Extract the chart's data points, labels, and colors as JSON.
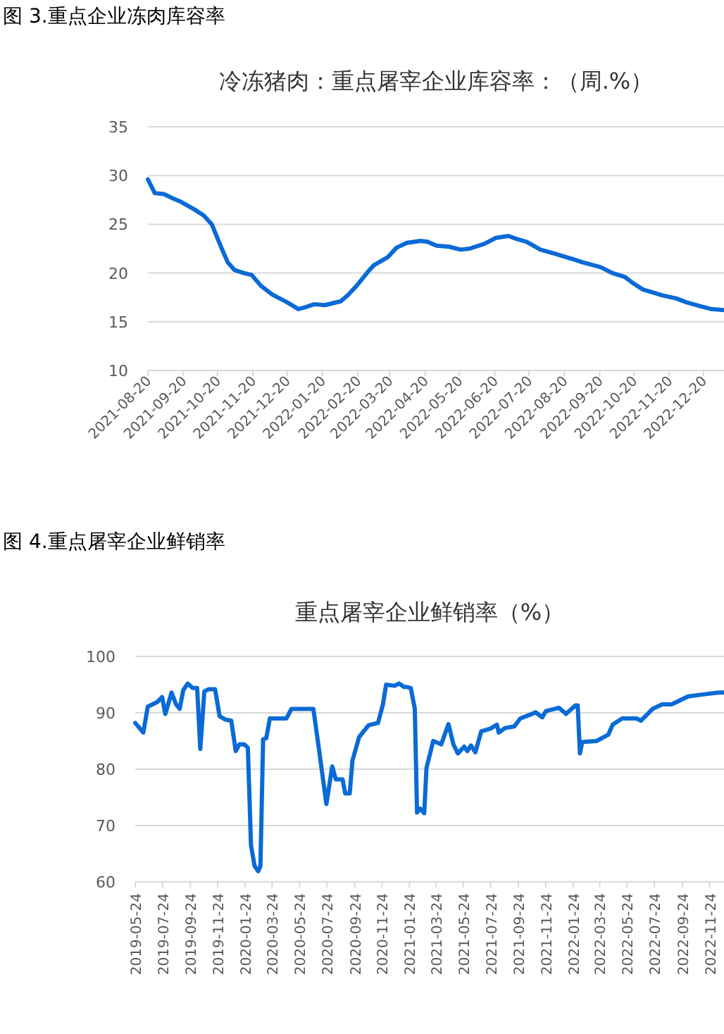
{
  "chart_data": [
    {
      "type": "line",
      "title": "图 3.重点企业冻肉库容率",
      "subtitle": "冷冻猪肉：重点屠宰企业库容率：（周.%）",
      "color": "#0a6ad6",
      "grid": "y",
      "x": [
        "2021-08-20",
        "2021-08-26",
        "2021-09-03",
        "2021-09-10",
        "2021-09-18",
        "2021-09-30",
        "2021-10-08",
        "2021-10-15",
        "2021-10-23",
        "2021-10-29",
        "2021-11-04",
        "2021-11-12",
        "2021-11-19",
        "2021-11-27",
        "2021-12-07",
        "2021-12-20",
        "2021-12-30",
        "2022-01-05",
        "2022-01-13",
        "2022-01-22",
        "2022-02-05",
        "2022-02-11",
        "2022-02-19",
        "2022-02-28",
        "2022-03-06",
        "2022-03-18",
        "2022-03-26",
        "2022-04-04",
        "2022-04-16",
        "2022-04-22",
        "2022-04-30",
        "2022-05-11",
        "2022-05-21",
        "2022-05-29",
        "2022-06-11",
        "2022-06-21",
        "2022-07-02",
        "2022-07-09",
        "2022-07-18",
        "2022-07-30",
        "2022-08-11",
        "2022-08-28",
        "2022-09-05",
        "2022-09-21",
        "2022-10-01",
        "2022-10-12",
        "2022-10-20",
        "2022-10-28",
        "2022-11-06",
        "2022-11-14",
        "2022-11-26",
        "2022-12-05",
        "2022-12-17",
        "2022-12-27",
        "2023-01-07"
      ],
      "values": [
        29.6,
        28.2,
        28.1,
        27.7,
        27.3,
        26.5,
        25.9,
        25.0,
        22.7,
        21.1,
        20.3,
        20.0,
        19.8,
        18.7,
        17.8,
        17.0,
        16.3,
        16.5,
        16.8,
        16.7,
        17.1,
        17.7,
        18.7,
        20.0,
        20.8,
        21.6,
        22.6,
        23.1,
        23.3,
        23.2,
        22.8,
        22.7,
        22.4,
        22.5,
        23.0,
        23.6,
        23.8,
        23.5,
        23.2,
        22.4,
        22.0,
        21.4,
        21.1,
        20.6,
        20.0,
        19.6,
        18.9,
        18.3,
        18.0,
        17.7,
        17.4,
        17.0,
        16.6,
        16.3,
        16.2
      ],
      "xlim": [
        "2021-08-20",
        "2023-01-07"
      ],
      "xticks": [
        "2021-08-20",
        "2021-09-20",
        "2021-10-20",
        "2021-11-20",
        "2021-12-20",
        "2022-01-20",
        "2022-02-20",
        "2022-03-20",
        "2022-04-20",
        "2022-05-20",
        "2022-06-20",
        "2022-07-20",
        "2022-08-20",
        "2022-09-20",
        "2022-10-20",
        "2022-11-20",
        "2022-12-20"
      ],
      "ylim": [
        10,
        35
      ],
      "yticks": [
        10,
        15,
        20,
        25,
        30,
        35
      ]
    },
    {
      "type": "line",
      "title": "图 4.重点屠宰企业鲜销率",
      "subtitle": "重点屠宰企业鲜销率（%）",
      "color": "#0a6ad6",
      "grid": "y",
      "x": [
        "2019-05-24",
        "2019-06-11",
        "2019-06-21",
        "2019-07-12",
        "2019-07-23",
        "2019-07-30",
        "2019-08-13",
        "2019-08-23",
        "2019-08-31",
        "2019-09-08",
        "2019-09-18",
        "2019-09-29",
        "2019-10-09",
        "2019-10-16",
        "2019-10-25",
        "2019-11-04",
        "2019-11-18",
        "2019-11-28",
        "2019-12-11",
        "2019-12-24",
        "2020-01-03",
        "2020-01-11",
        "2020-01-22",
        "2020-01-30",
        "2020-02-06",
        "2020-02-14",
        "2020-02-22",
        "2020-02-27",
        "2020-03-04",
        "2020-03-11",
        "2020-03-19",
        "2020-04-25",
        "2020-05-06",
        "2020-06-24",
        "2020-07-07",
        "2020-07-23",
        "2020-08-05",
        "2020-08-13",
        "2020-08-28",
        "2020-09-03",
        "2020-09-13",
        "2020-09-19",
        "2020-10-04",
        "2020-10-25",
        "2020-11-15",
        "2020-11-26",
        "2020-12-03",
        "2020-12-22",
        "2021-01-01",
        "2021-01-12",
        "2021-01-17",
        "2021-01-27",
        "2021-02-05",
        "2021-02-10",
        "2021-02-17",
        "2021-02-26",
        "2021-03-03",
        "2021-03-18",
        "2021-04-05",
        "2021-04-21",
        "2021-05-02",
        "2021-05-12",
        "2021-05-26",
        "2021-06-02",
        "2021-06-10",
        "2021-06-20",
        "2021-07-03",
        "2021-07-24",
        "2021-08-07",
        "2021-08-11",
        "2021-08-25",
        "2021-09-15",
        "2021-09-28",
        "2021-10-21",
        "2021-11-01",
        "2021-11-16",
        "2021-11-24",
        "2021-12-23",
        "2022-01-08",
        "2022-01-29",
        "2022-02-03",
        "2022-02-08",
        "2022-02-13",
        "2022-03-17",
        "2022-04-12",
        "2022-04-22",
        "2022-05-13",
        "2022-06-14",
        "2022-06-24",
        "2022-07-20",
        "2022-08-10",
        "2022-08-31",
        "2022-09-11",
        "2022-10-07",
        "2022-11-13",
        "2022-12-14",
        "2022-12-26"
      ],
      "values": [
        88.2,
        86.5,
        91.1,
        91.9,
        92.8,
        89.8,
        93.6,
        91.5,
        90.7,
        94.0,
        95.2,
        94.4,
        94.4,
        83.6,
        93.8,
        94.2,
        94.2,
        89.4,
        88.8,
        88.6,
        83.2,
        84.4,
        84.4,
        83.8,
        66.5,
        62.8,
        61.9,
        62.8,
        85.3,
        85.5,
        89.0,
        89.0,
        90.7,
        90.7,
        83.2,
        73.8,
        80.5,
        78.2,
        78.2,
        75.7,
        75.7,
        81.5,
        85.7,
        87.8,
        88.2,
        91.5,
        95.0,
        94.8,
        95.2,
        94.6,
        94.6,
        94.4,
        90.7,
        72.3,
        73.0,
        72.2,
        80.2,
        85.0,
        84.4,
        88.0,
        84.4,
        82.8,
        84.0,
        83.2,
        84.2,
        83.0,
        86.7,
        87.2,
        87.9,
        86.5,
        87.3,
        87.6,
        89.0,
        89.7,
        90.1,
        89.2,
        90.3,
        90.9,
        89.8,
        91.3,
        91.3,
        82.8,
        84.8,
        85.0,
        86.1,
        87.9,
        89.0,
        89.0,
        88.6,
        90.7,
        91.5,
        91.5,
        91.9,
        92.9,
        93.3,
        93.6,
        93.6
      ],
      "xlim": [
        "2019-05-24",
        "2022-12-26"
      ],
      "xticks": [
        "2019-05-24",
        "2019-07-24",
        "2019-09-24",
        "2019-11-24",
        "2020-01-24",
        "2020-03-24",
        "2020-05-24",
        "2020-07-24",
        "2020-09-24",
        "2020-11-24",
        "2021-01-24",
        "2021-03-24",
        "2021-05-24",
        "2021-07-24",
        "2021-09-24",
        "2021-11-24",
        "2022-01-24",
        "2022-03-24",
        "2022-05-24",
        "2022-07-24",
        "2022-09-24",
        "2022-11-24"
      ],
      "ylim": [
        60,
        100
      ],
      "yticks": [
        60,
        70,
        80,
        90,
        100
      ]
    }
  ]
}
